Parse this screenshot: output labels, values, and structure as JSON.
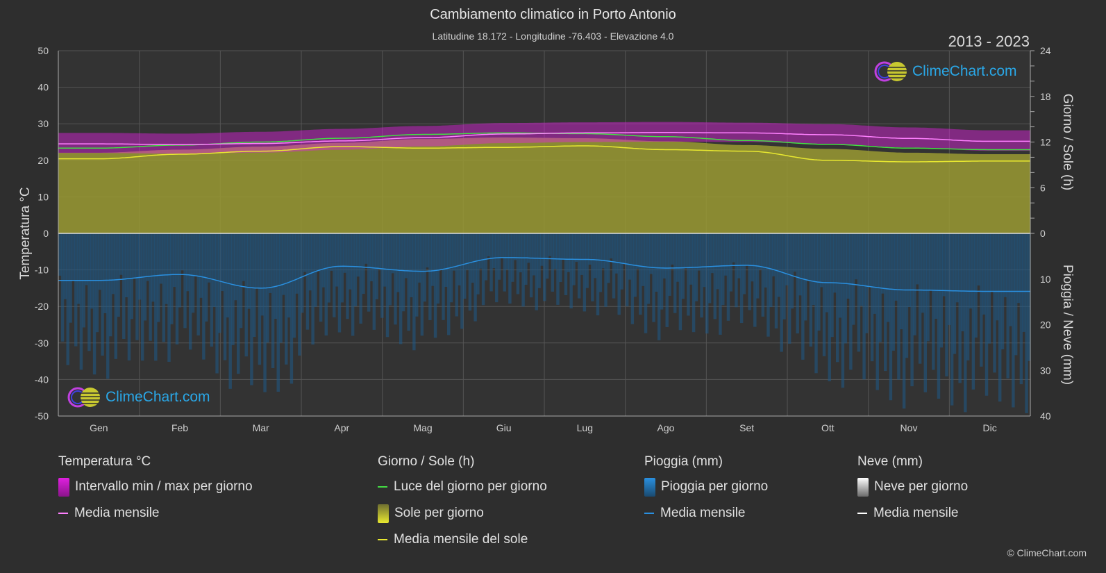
{
  "title": "Cambiamento climatico in Porto Antonio",
  "subtitle": "Latitudine 18.172 - Longitudine -76.403 - Elevazione 4.0",
  "years": "2013 - 2023",
  "logo_text": "ClimeChart.com",
  "copyright": "© ClimeChart.com",
  "colors": {
    "temp_range": "#e020e0",
    "temp_mean": "#ff80ff",
    "daylight": "#44dd44",
    "sunshine_fill": "#9a9a32",
    "sunshine_mean": "#e8e830",
    "rain_fill": "#1e5a88",
    "rain_mean": "#2a90e0",
    "snow_mean": "#ffffff"
  },
  "legend": {
    "temp": {
      "title": "Temperatura °C",
      "range": "Intervallo min / max per giorno",
      "mean": "Media mensile"
    },
    "sun": {
      "title": "Giorno / Sole (h)",
      "daylight": "Luce del giorno per giorno",
      "sunshine": "Sole per giorno",
      "sun_mean": "Media mensile del sole"
    },
    "rain": {
      "title": "Pioggia (mm)",
      "rain": "Pioggia per giorno",
      "mean": "Media mensile"
    },
    "snow": {
      "title": "Neve (mm)",
      "snow": "Neve per giorno",
      "mean": "Media mensile"
    }
  },
  "chart_data": {
    "type": "line",
    "categories": [
      "Gen",
      "Feb",
      "Mar",
      "Apr",
      "Mag",
      "Giu",
      "Lug",
      "Ago",
      "Set",
      "Ott",
      "Nov",
      "Dic"
    ],
    "left_axis": {
      "label": "Temperatura °C",
      "ylim": [
        -50,
        50
      ],
      "ticks": [
        50,
        40,
        30,
        20,
        10,
        0,
        -10,
        -20,
        -30,
        -40,
        -50
      ]
    },
    "right_axis_top": {
      "label": "Giorno / Sole (h)",
      "ylim": [
        0,
        24
      ],
      "ticks": [
        24,
        18,
        12,
        6,
        0
      ]
    },
    "right_axis_bottom": {
      "label": "Pioggia / Neve (mm)",
      "ylim": [
        0,
        40
      ],
      "ticks": [
        0,
        10,
        20,
        30,
        40
      ]
    },
    "series": [
      {
        "name": "Media mensile",
        "axis": "temp",
        "values": [
          24.5,
          24.3,
          24.6,
          25.3,
          26.2,
          27.2,
          27.5,
          27.6,
          27.5,
          27.0,
          26.0,
          25.2
        ]
      },
      {
        "name": "Intervallo min / max per giorno (max)",
        "axis": "temp",
        "values": [
          27.5,
          27.3,
          27.8,
          28.6,
          29.4,
          30.2,
          30.4,
          30.5,
          30.3,
          29.9,
          29.0,
          28.2
        ]
      },
      {
        "name": "Intervallo min / max per giorno (min)",
        "axis": "temp",
        "values": [
          22.0,
          21.8,
          22.1,
          22.9,
          23.8,
          24.7,
          25.0,
          25.1,
          25.0,
          24.5,
          23.5,
          22.6
        ]
      },
      {
        "name": "Luce del giorno per giorno",
        "axis": "sun",
        "values": [
          11.2,
          11.6,
          12.0,
          12.5,
          13.0,
          13.2,
          13.1,
          12.7,
          12.2,
          11.7,
          11.2,
          11.0
        ]
      },
      {
        "name": "Media mensile del sole",
        "axis": "sun",
        "values": [
          9.8,
          10.4,
          10.8,
          11.4,
          11.2,
          11.3,
          11.5,
          11.0,
          10.8,
          9.6,
          9.4,
          9.5
        ]
      },
      {
        "name": "Media mensile",
        "axis": "rain",
        "values": [
          10.3,
          9.0,
          12.0,
          7.2,
          8.3,
          5.3,
          5.7,
          7.6,
          7.0,
          10.8,
          12.4,
          12.7
        ]
      },
      {
        "name": "Media mensile",
        "axis": "snow",
        "values": [
          0,
          0,
          0,
          0,
          0,
          0,
          0,
          0,
          0,
          0,
          0,
          0
        ]
      }
    ]
  }
}
